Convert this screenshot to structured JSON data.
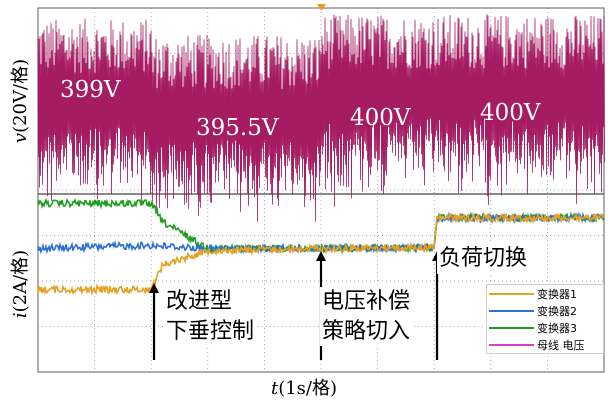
{
  "chart_data": {
    "type": "line",
    "xlabel_var": "t",
    "xlabel_unit": "(1s/格)",
    "upper": {
      "ylabel_var": "v",
      "ylabel_unit": "(20V/格)",
      "series": [
        {
          "name": "母线电压",
          "color": "#a0105a",
          "segments": [
            [
              0,
              2,
              399
            ],
            [
              2,
              5,
              395.5
            ],
            [
              5,
              7,
              400
            ],
            [
              7,
              10,
              400
            ]
          ]
        }
      ],
      "value_labels": [
        "399V",
        "395.5V",
        "400V",
        "400V"
      ]
    },
    "lower": {
      "ylabel_var": "i",
      "ylabel_unit": "(2A/格)",
      "series": [
        {
          "name": "变换器1",
          "color": "#e8a020",
          "values": [
            [
              0,
              1.0
            ],
            [
              2,
              1.0
            ],
            [
              2.2,
              2.2
            ],
            [
              3,
              2.9
            ],
            [
              5,
              3.0
            ],
            [
              7,
              3.05
            ],
            [
              7.05,
              4.5
            ],
            [
              10,
              4.5
            ]
          ]
        },
        {
          "name": "变换器2",
          "color": "#2b70d8",
          "values": [
            [
              0,
              3.0
            ],
            [
              2,
              3.15
            ],
            [
              3,
              3.0
            ],
            [
              5,
              3.0
            ],
            [
              7,
              3.05
            ],
            [
              7.05,
              4.5
            ],
            [
              10,
              4.5
            ]
          ]
        },
        {
          "name": "变换器3",
          "color": "#1e9e1e",
          "values": [
            [
              0,
              5.2
            ],
            [
              2,
              5.2
            ],
            [
              2.2,
              4.3
            ],
            [
              3,
              3.0
            ],
            [
              5,
              3.0
            ],
            [
              7,
              3.05
            ],
            [
              7.05,
              4.5
            ],
            [
              10,
              4.5
            ]
          ]
        }
      ]
    },
    "annotations": [
      {
        "x": 2.05,
        "lines": [
          "改进型",
          "下垂控制"
        ]
      },
      {
        "x": 5.0,
        "lines": [
          "电压补偿",
          "策略切入"
        ]
      },
      {
        "x": 7.05,
        "lines": [
          "负荷切换"
        ]
      }
    ],
    "legend": {
      "placement": "bottom-right",
      "items": [
        {
          "label": "变换器1",
          "color": "#e8a020"
        },
        {
          "label": "变换器2",
          "color": "#2b70d8"
        },
        {
          "label": "变换器3",
          "color": "#1e9e1e"
        },
        {
          "label": "母线 电压",
          "color": "#e040c0"
        }
      ]
    },
    "grid": true
  }
}
